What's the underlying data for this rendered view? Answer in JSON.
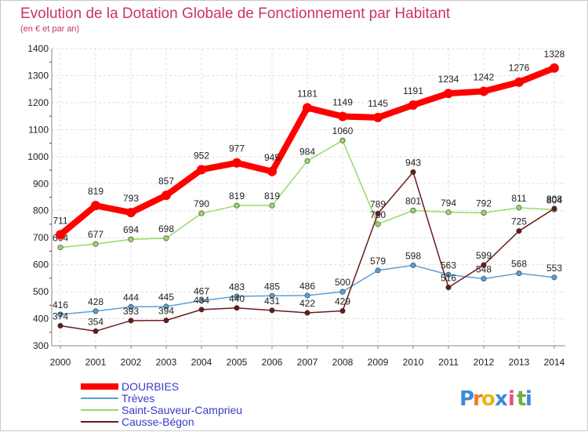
{
  "chart_data": {
    "type": "line",
    "title": "Evolution de la Dotation Globale de Fonctionnement par Habitant",
    "subtitle": "(en € et par an)",
    "xlabel": "",
    "ylabel": "",
    "ylim": [
      300,
      1400
    ],
    "y_ticks": [
      "300",
      "400",
      "500",
      "600",
      "700",
      "800",
      "900",
      "1000",
      "1100",
      "1200",
      "1300",
      "1400"
    ],
    "x": [
      "2000",
      "2001",
      "2002",
      "2003",
      "2004",
      "2005",
      "2006",
      "2007",
      "2008",
      "2009",
      "2010",
      "2011",
      "2012",
      "2013",
      "2014"
    ],
    "grid": true,
    "legend_position": "bottom-left",
    "series": [
      {
        "name": "DOURBIES",
        "color": "#ff0000",
        "emphasis": "thick",
        "values": [
          711,
          819,
          793,
          857,
          952,
          977,
          945,
          1181,
          1149,
          1145,
          1191,
          1234,
          1242,
          1276,
          1328
        ],
        "labels": [
          "711",
          "819",
          "793",
          "857",
          "952",
          "977",
          "945",
          "1181",
          "1149",
          "1145",
          "1191",
          "1234",
          "1242",
          "1276",
          "1328"
        ]
      },
      {
        "name": "Trèves",
        "color": "#5a9fd4",
        "emphasis": "thin",
        "values": [
          416,
          428,
          444,
          445,
          467,
          483,
          485,
          486,
          500,
          579,
          598,
          563,
          548,
          568,
          553
        ],
        "labels": [
          "416",
          "428",
          "444",
          "445",
          "467",
          "483",
          "485",
          "486",
          "500",
          "579",
          "598",
          "563",
          "548",
          "568",
          "553"
        ]
      },
      {
        "name": "Saint-Sauveur-Camprieu",
        "color": "#99d966",
        "emphasis": "thin",
        "values": [
          664,
          677,
          694,
          698,
          790,
          819,
          819,
          984,
          1060,
          750,
          801,
          794,
          792,
          811,
          804
        ],
        "labels": [
          "664",
          "677",
          "694",
          "698",
          "790",
          "819",
          "819",
          "984",
          "1060",
          "750",
          "801",
          "794",
          "792",
          "811",
          "804"
        ]
      },
      {
        "name": "Causse-Bégon",
        "color": "#6b1a1a",
        "emphasis": "thin",
        "values": [
          374,
          354,
          393,
          394,
          434,
          440,
          431,
          422,
          429,
          789,
          943,
          516,
          599,
          725,
          808
        ],
        "labels": [
          "374",
          "354",
          "393",
          "394",
          "434",
          "440",
          "431",
          "422",
          "429",
          "789",
          "943",
          "516",
          "599",
          "725",
          "808"
        ]
      }
    ]
  },
  "logo": {
    "letters": [
      "P",
      "r",
      "o",
      "x",
      "i",
      "t",
      "i"
    ],
    "colors": [
      "#3b8ad6",
      "#f07b1c",
      "#e8b51a",
      "#3b8ad6",
      "#e84e8e",
      "#6ab03a",
      "#3b8ad6"
    ]
  }
}
